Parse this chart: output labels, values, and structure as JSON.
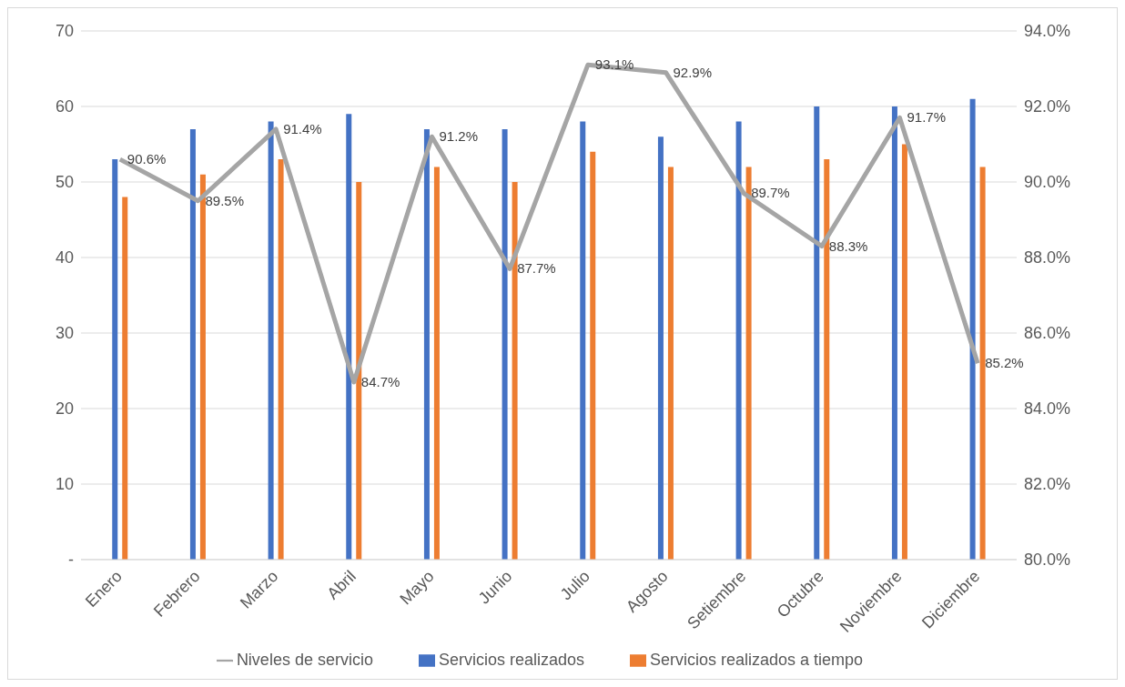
{
  "chart_data": {
    "type": "bar",
    "categories": [
      "Enero",
      "Febrero",
      "Marzo",
      "Abril",
      "Mayo",
      "Junio",
      "Julio",
      "Agosto",
      "Setiembre",
      "Octubre",
      "Noviembre",
      "Diciembre"
    ],
    "series": [
      {
        "name": "Servicios realizados",
        "color": "#4472c4",
        "values": [
          53,
          57,
          58,
          59,
          57,
          57,
          58,
          56,
          58,
          60,
          60,
          61
        ]
      },
      {
        "name": "Servicios realizados a tiempo",
        "color": "#ed7d31",
        "values": [
          48,
          51,
          53,
          50,
          52,
          50,
          54,
          52,
          52,
          53,
          55,
          52
        ]
      },
      {
        "name": "Niveles de servicio",
        "type": "line",
        "axis": "y2",
        "color": "#a5a5a5",
        "marker": "none",
        "values": [
          90.6,
          89.5,
          91.4,
          84.7,
          91.2,
          87.7,
          93.1,
          92.9,
          89.7,
          88.3,
          91.7,
          85.2
        ],
        "value_labels": [
          "90.6%",
          "89.5%",
          "91.4%",
          "84.7%",
          "91.2%",
          "87.7%",
          "93.1%",
          "92.9%",
          "89.7%",
          "88.3%",
          "91.7%",
          "85.2%"
        ]
      }
    ],
    "ylim": [
      0,
      70
    ],
    "yticks": [
      {
        "value": 0,
        "label": "-"
      },
      10,
      20,
      30,
      40,
      50,
      60,
      70
    ],
    "y2lim": [
      80,
      94
    ],
    "y2ticks": [
      {
        "value": 80,
        "label": "80.0%"
      },
      {
        "value": 82,
        "label": "82.0%"
      },
      {
        "value": 84,
        "label": "84.0%"
      },
      {
        "value": 86,
        "label": "86.0%"
      },
      {
        "value": 88,
        "label": "88.0%"
      },
      {
        "value": 90,
        "label": "90.0%"
      },
      {
        "value": 92,
        "label": "92.0%"
      },
      {
        "value": 94,
        "label": "94.0%"
      }
    ],
    "grid": "y",
    "legend": "bottom"
  }
}
